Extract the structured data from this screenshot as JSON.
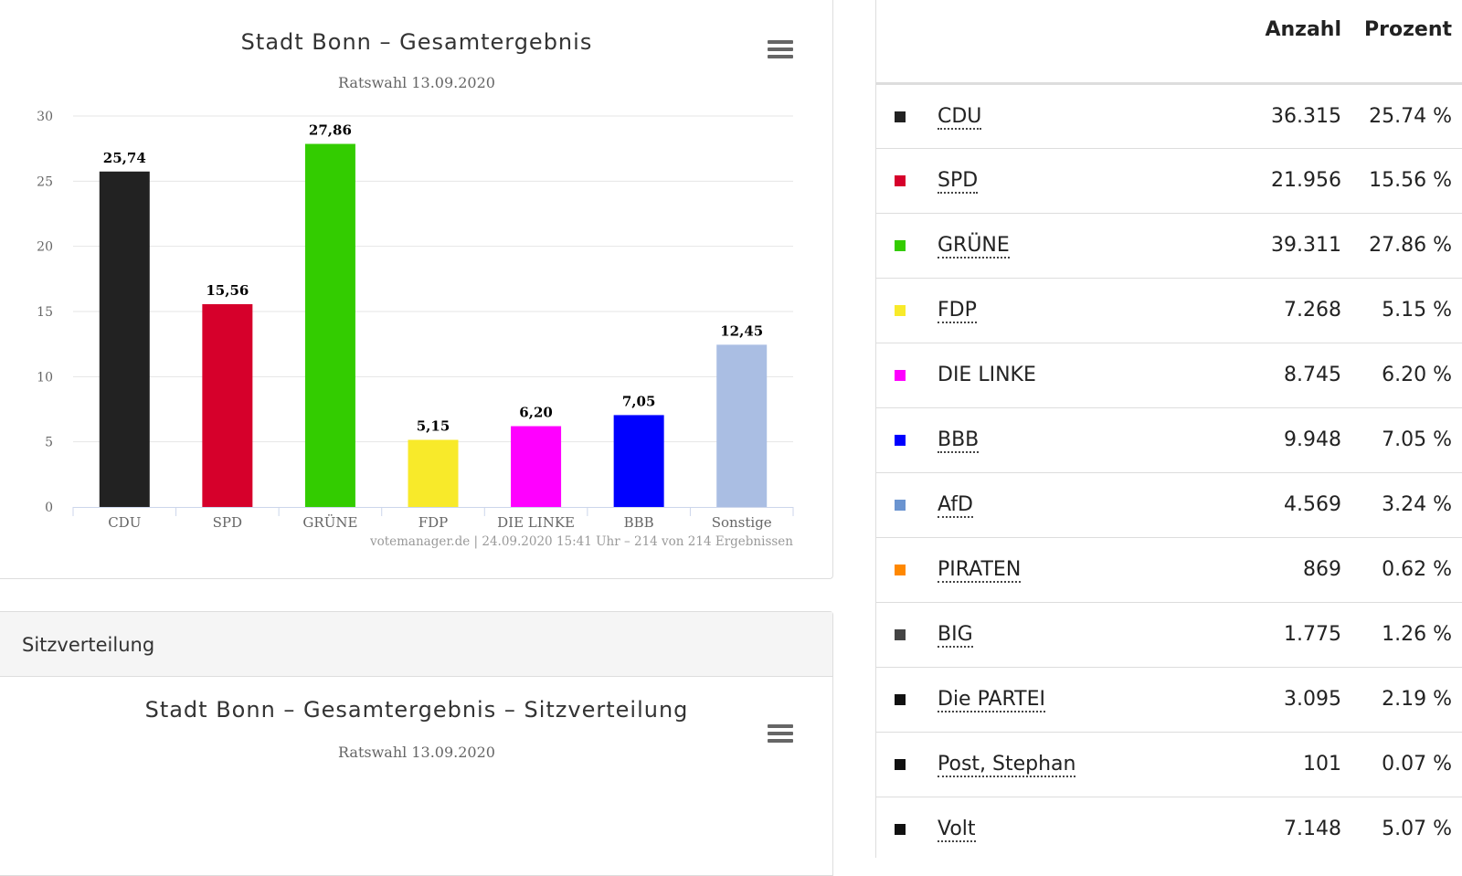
{
  "chart_panel": {
    "title": "Stadt Bonn – Gesamtergebnis",
    "subtitle": "Ratswahl 13.09.2020",
    "credit": "votemanager.de | 24.09.2020 15:41 Uhr – 214 von 214 Ergebnissen",
    "menu_icon": "hamburger-menu-icon"
  },
  "chart_data": {
    "type": "bar",
    "title": "Stadt Bonn – Gesamtergebnis",
    "subtitle": "Ratswahl 13.09.2020",
    "categories": [
      "CDU",
      "SPD",
      "GRÜNE",
      "FDP",
      "DIE LINKE",
      "BBB",
      "Sonstige"
    ],
    "values": [
      25.74,
      15.56,
      27.86,
      5.15,
      6.2,
      7.05,
      12.45
    ],
    "data_labels": [
      "25,74",
      "15,56",
      "27,86",
      "5,15",
      "6,20",
      "7,05",
      "12,45"
    ],
    "colors": [
      "#222222",
      "#d6002b",
      "#33cc00",
      "#f8ea2a",
      "#ff00ff",
      "#0000ff",
      "#aabee3"
    ],
    "yticks": [
      "0",
      "5",
      "10",
      "15",
      "20",
      "25",
      "30"
    ],
    "ylim": [
      0,
      30
    ],
    "grid": true,
    "legend": "none"
  },
  "seats_panel": {
    "heading": "Sitzverteilung",
    "title": "Stadt Bonn – Gesamtergebnis – Sitzverteilung",
    "subtitle": "Ratswahl 13.09.2020",
    "menu_icon": "hamburger-menu-icon"
  },
  "results_table": {
    "headers": {
      "party": "",
      "count": "Anzahl",
      "percent": "Prozent"
    },
    "rows": [
      {
        "party": "CDU",
        "count": "36.315",
        "percent": "25.74 %",
        "color": "#222222",
        "link": true
      },
      {
        "party": "SPD",
        "count": "21.956",
        "percent": "15.56 %",
        "color": "#d6002b",
        "link": true
      },
      {
        "party": "GRÜNE",
        "count": "39.311",
        "percent": "27.86 %",
        "color": "#33cc00",
        "link": true
      },
      {
        "party": "FDP",
        "count": "7.268",
        "percent": "5.15 %",
        "color": "#f8ea2a",
        "link": true
      },
      {
        "party": "DIE LINKE",
        "count": "8.745",
        "percent": "6.20 %",
        "color": "#ff00ff",
        "link": false
      },
      {
        "party": "BBB",
        "count": "9.948",
        "percent": "7.05 %",
        "color": "#0000ff",
        "link": true
      },
      {
        "party": "AfD",
        "count": "4.569",
        "percent": "3.24 %",
        "color": "#6b94d0",
        "link": true
      },
      {
        "party": "PIRATEN",
        "count": "869",
        "percent": "0.62 %",
        "color": "#ff8800",
        "link": true
      },
      {
        "party": "BIG",
        "count": "1.775",
        "percent": "1.26 %",
        "color": "#444444",
        "link": true
      },
      {
        "party": "Die PARTEI",
        "count": "3.095",
        "percent": "2.19 %",
        "color": "#111111",
        "link": true
      },
      {
        "party": "Post, Stephan",
        "count": "101",
        "percent": "0.07 %",
        "color": "#111111",
        "link": true
      },
      {
        "party": "Volt",
        "count": "7.148",
        "percent": "5.07 %",
        "color": "#111111",
        "link": true
      }
    ]
  }
}
